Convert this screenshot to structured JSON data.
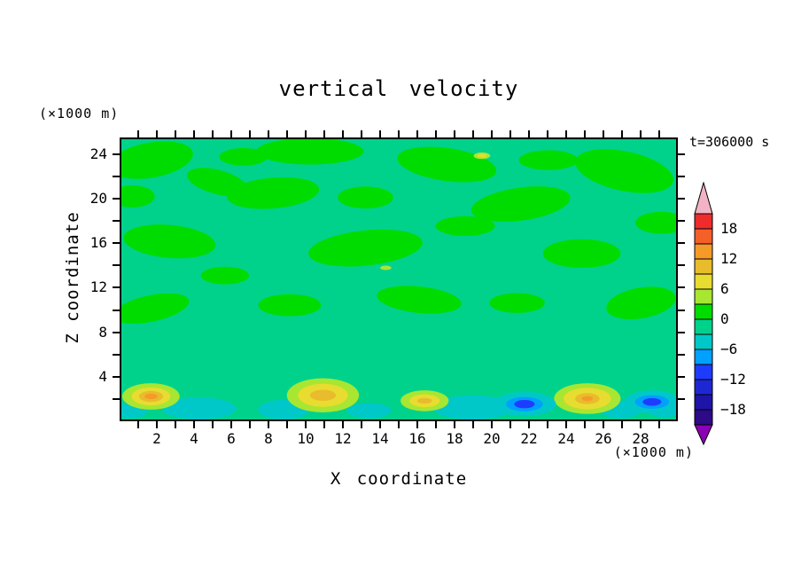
{
  "title": "vertical velocity",
  "annotations": {
    "time_label": "t=306000 s"
  },
  "axes": {
    "x": {
      "label": "X coordinate",
      "units": "(×1000 m)",
      "min": 0,
      "max": 30,
      "tick_step": 1,
      "label_ticks": [
        2,
        4,
        6,
        8,
        10,
        12,
        14,
        16,
        18,
        20,
        22,
        24,
        26,
        28
      ]
    },
    "z": {
      "label": "Z coordinate",
      "units": "(×1000 m)",
      "min": 0,
      "max": 25.5,
      "tick_step": 2,
      "label_ticks": [
        4,
        8,
        12,
        16,
        20,
        24
      ]
    }
  },
  "colorbar": {
    "contour_interval": 3,
    "boundary_labels": [
      "18",
      "12",
      "6",
      "0",
      "−6",
      "−12",
      "−18"
    ],
    "top_arrow_color": "#f2b4c4",
    "bottom_arrow_color": "#8c00b4",
    "segments_top_to_bottom": [
      {
        "min": 18,
        "max": 21,
        "color": "#ee2c2c"
      },
      {
        "min": 15,
        "max": 18,
        "color": "#f55f28"
      },
      {
        "min": 12,
        "max": 15,
        "color": "#f59a28"
      },
      {
        "min": 9,
        "max": 12,
        "color": "#e8bc2c"
      },
      {
        "min": 6,
        "max": 9,
        "color": "#e8dc30"
      },
      {
        "min": 3,
        "max": 6,
        "color": "#a8e632"
      },
      {
        "min": 0,
        "max": 3,
        "color": "#00dc00"
      },
      {
        "min": -3,
        "max": 0,
        "color": "#00d28c"
      },
      {
        "min": -6,
        "max": -3,
        "color": "#00c8c8"
      },
      {
        "min": -9,
        "max": -6,
        "color": "#00a0ff"
      },
      {
        "min": -12,
        "max": -9,
        "color": "#1e3cff"
      },
      {
        "min": -15,
        "max": -12,
        "color": "#1e28d2"
      },
      {
        "min": -18,
        "max": -15,
        "color": "#1e14a8"
      },
      {
        "min": -21,
        "max": -18,
        "color": "#2d0a87"
      }
    ]
  },
  "chart_data": {
    "type": "heatmap",
    "subtype": "filled-contour",
    "variable": "vertical velocity",
    "time_label": "t=306000 s",
    "x_range": [
      0,
      30
    ],
    "z_range": [
      0,
      25.5
    ],
    "coordinate_units": "×1000 m",
    "contour_interval": 3,
    "levels": [
      -21,
      -18,
      -15,
      -12,
      -9,
      -6,
      -3,
      0,
      3,
      6,
      9,
      12,
      15,
      18,
      21
    ],
    "background_band": [
      -3,
      0
    ],
    "background_color": "#00d28c",
    "green_patch_band": [
      0,
      3
    ],
    "green_patch_color": "#00dc00",
    "cyan_band": [
      -6,
      -3
    ],
    "cyan_color": "#00c8c8",
    "green_patches": [
      {
        "x": 1.6,
        "z": 23.6,
        "rx": 2.3,
        "rz": 1.6,
        "rot": -10
      },
      {
        "x": 5.2,
        "z": 21.6,
        "rx": 1.7,
        "rz": 1.1,
        "rot": 15
      },
      {
        "x": 8.2,
        "z": 20.6,
        "rx": 2.5,
        "rz": 1.4,
        "rot": -5
      },
      {
        "x": 10.2,
        "z": 24.4,
        "rx": 2.9,
        "rz": 1.2,
        "rot": 0
      },
      {
        "x": 13.2,
        "z": 20.2,
        "rx": 1.5,
        "rz": 1.0,
        "rot": 0
      },
      {
        "x": 17.6,
        "z": 23.2,
        "rx": 2.7,
        "rz": 1.5,
        "rot": 8
      },
      {
        "x": 21.6,
        "z": 19.6,
        "rx": 2.7,
        "rz": 1.5,
        "rot": -8
      },
      {
        "x": 27.2,
        "z": 22.6,
        "rx": 2.7,
        "rz": 1.8,
        "rot": 12
      },
      {
        "x": 2.6,
        "z": 16.2,
        "rx": 2.5,
        "rz": 1.5,
        "rot": 5
      },
      {
        "x": 13.2,
        "z": 15.6,
        "rx": 3.1,
        "rz": 1.6,
        "rot": -6
      },
      {
        "x": 24.9,
        "z": 15.1,
        "rx": 2.1,
        "rz": 1.3,
        "rot": 0
      },
      {
        "x": 1.6,
        "z": 10.1,
        "rx": 2.1,
        "rz": 1.2,
        "rot": -12
      },
      {
        "x": 9.1,
        "z": 10.4,
        "rx": 1.7,
        "rz": 1.0,
        "rot": 0
      },
      {
        "x": 16.1,
        "z": 10.9,
        "rx": 2.3,
        "rz": 1.2,
        "rot": 6
      },
      {
        "x": 21.4,
        "z": 10.6,
        "rx": 1.5,
        "rz": 0.9,
        "rot": 0
      },
      {
        "x": 28.1,
        "z": 10.6,
        "rx": 1.9,
        "rz": 1.4,
        "rot": -10
      },
      {
        "x": 6.6,
        "z": 23.9,
        "rx": 1.3,
        "rz": 0.8,
        "rot": 0
      },
      {
        "x": 23.1,
        "z": 23.6,
        "rx": 1.6,
        "rz": 0.9,
        "rot": 0
      },
      {
        "x": 18.6,
        "z": 17.6,
        "rx": 1.6,
        "rz": 0.9,
        "rot": 0
      },
      {
        "x": 5.6,
        "z": 13.1,
        "rx": 1.3,
        "rz": 0.8,
        "rot": 0
      },
      {
        "x": 29.2,
        "z": 17.9,
        "rx": 1.4,
        "rz": 1.0,
        "rot": 0
      },
      {
        "x": 0.6,
        "z": 20.3,
        "rx": 1.2,
        "rz": 1.0,
        "rot": 0
      }
    ],
    "cyan_patches": [
      {
        "x": 0.5,
        "z": 0.8,
        "rx": 0.9,
        "rz": 0.7
      },
      {
        "x": 4.2,
        "z": 1.0,
        "rx": 2.0,
        "rz": 1.0
      },
      {
        "x": 8.8,
        "z": 0.9,
        "rx": 1.4,
        "rz": 0.9
      },
      {
        "x": 13.4,
        "z": 0.8,
        "rx": 1.2,
        "rz": 0.7
      },
      {
        "x": 19.0,
        "z": 1.1,
        "rx": 2.2,
        "rz": 1.1
      },
      {
        "x": 27.0,
        "z": 0.9,
        "rx": 1.1,
        "rz": 0.8
      },
      {
        "x": 29.4,
        "z": 1.1,
        "rx": 1.1,
        "rz": 0.9
      }
    ],
    "updrafts": [
      {
        "x": 1.6,
        "z": 2.1,
        "layers": [
          {
            "color": "#a8e632",
            "rx": 1.55,
            "rz": 1.2
          },
          {
            "color": "#e8dc30",
            "rx": 1.05,
            "rz": 0.82
          },
          {
            "color": "#e8bc2c",
            "rx": 0.65,
            "rz": 0.5
          },
          {
            "color": "#f59a28",
            "rx": 0.35,
            "rz": 0.26
          }
        ]
      },
      {
        "x": 10.9,
        "z": 2.2,
        "layers": [
          {
            "color": "#a8e632",
            "rx": 1.95,
            "rz": 1.55
          },
          {
            "color": "#e8dc30",
            "rx": 1.35,
            "rz": 1.05
          },
          {
            "color": "#e8bc2c",
            "rx": 0.7,
            "rz": 0.5
          }
        ]
      },
      {
        "x": 16.4,
        "z": 1.7,
        "layers": [
          {
            "color": "#a8e632",
            "rx": 1.3,
            "rz": 0.95
          },
          {
            "color": "#e8dc30",
            "rx": 0.82,
            "rz": 0.58
          },
          {
            "color": "#e8bc2c",
            "rx": 0.4,
            "rz": 0.26
          }
        ]
      },
      {
        "x": 25.2,
        "z": 1.9,
        "layers": [
          {
            "color": "#a8e632",
            "rx": 1.8,
            "rz": 1.4
          },
          {
            "color": "#e8dc30",
            "rx": 1.28,
            "rz": 0.98
          },
          {
            "color": "#e8bc2c",
            "rx": 0.66,
            "rz": 0.5
          },
          {
            "color": "#f59a28",
            "rx": 0.3,
            "rz": 0.22
          }
        ]
      }
    ],
    "downdrafts": [
      {
        "x": 21.8,
        "z": 1.4,
        "layers": [
          {
            "color": "#00c8c8",
            "rx": 1.7,
            "rz": 1.1
          },
          {
            "color": "#00a0ff",
            "rx": 1.0,
            "rz": 0.65
          },
          {
            "color": "#1e3cff",
            "rx": 0.55,
            "rz": 0.38
          }
        ]
      },
      {
        "x": 28.7,
        "z": 1.6,
        "layers": [
          {
            "color": "#00c8c8",
            "rx": 1.5,
            "rz": 1.05
          },
          {
            "color": "#00a0ff",
            "rx": 0.92,
            "rz": 0.62
          },
          {
            "color": "#1e3cff",
            "rx": 0.5,
            "rz": 0.35
          }
        ]
      }
    ],
    "specks": [
      {
        "x": 19.5,
        "z": 24.0,
        "layers": [
          {
            "color": "#a8e632",
            "rx": 0.45,
            "rz": 0.3
          },
          {
            "color": "#e8dc30",
            "rx": 0.25,
            "rz": 0.16
          }
        ]
      },
      {
        "x": 14.3,
        "z": 13.8,
        "layers": [
          {
            "color": "#a8e632",
            "rx": 0.3,
            "rz": 0.2
          }
        ]
      }
    ]
  }
}
